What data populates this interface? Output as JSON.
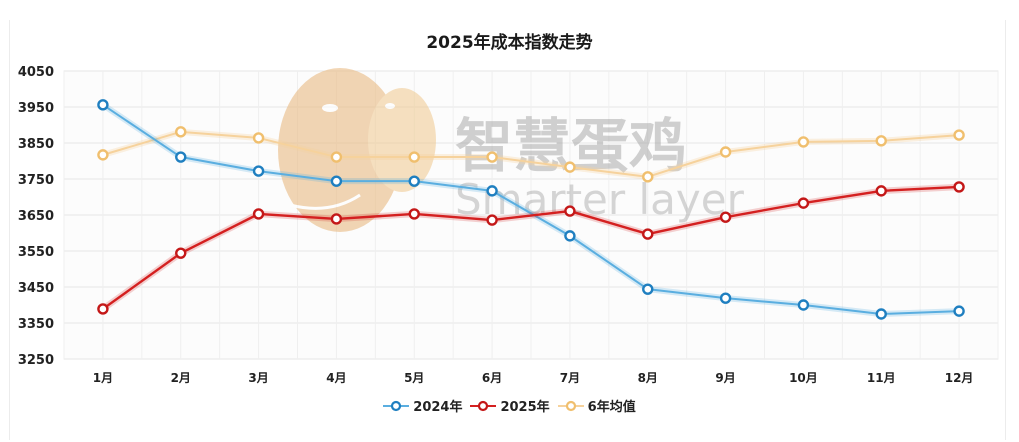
{
  "title": "2025年成本指数走势",
  "watermark": {
    "cn": "智慧蛋鸡",
    "en": "Smarter layer"
  },
  "legend": [
    {
      "label": "2024年",
      "color": "#2b8fd0"
    },
    {
      "label": "2025年",
      "color": "#d42020"
    },
    {
      "label": "6年均值",
      "color": "#f2c27a"
    }
  ],
  "chart_data": {
    "type": "line",
    "title": "2025年成本指数走势",
    "xlabel": "",
    "ylabel": "",
    "categories": [
      "1月",
      "2月",
      "3月",
      "4月",
      "5月",
      "6月",
      "7月",
      "8月",
      "9月",
      "10月",
      "11月",
      "12月"
    ],
    "y_ticks": [
      3250,
      3350,
      3450,
      3550,
      3650,
      3750,
      3850,
      3950,
      4050
    ],
    "ylim": [
      3250,
      4050
    ],
    "grid": true,
    "legend_position": "bottom",
    "series": [
      {
        "name": "2024年",
        "color": "#2b8fd0",
        "values": [
          3956,
          3811,
          3772,
          3744,
          3744,
          3717,
          3592,
          3444,
          3419,
          3400,
          3375,
          3383
        ]
      },
      {
        "name": "2025年",
        "color": "#d42020",
        "values": [
          3389,
          3544,
          3653,
          3639,
          3653,
          3636,
          3661,
          3597,
          3644,
          3683,
          3717,
          3728
        ]
      },
      {
        "name": "6年均值",
        "color": "#f2c27a",
        "values": [
          3817,
          3881,
          3864,
          3811,
          3811,
          3811,
          3783,
          3756,
          3825,
          3853,
          3856,
          3872
        ]
      }
    ]
  }
}
